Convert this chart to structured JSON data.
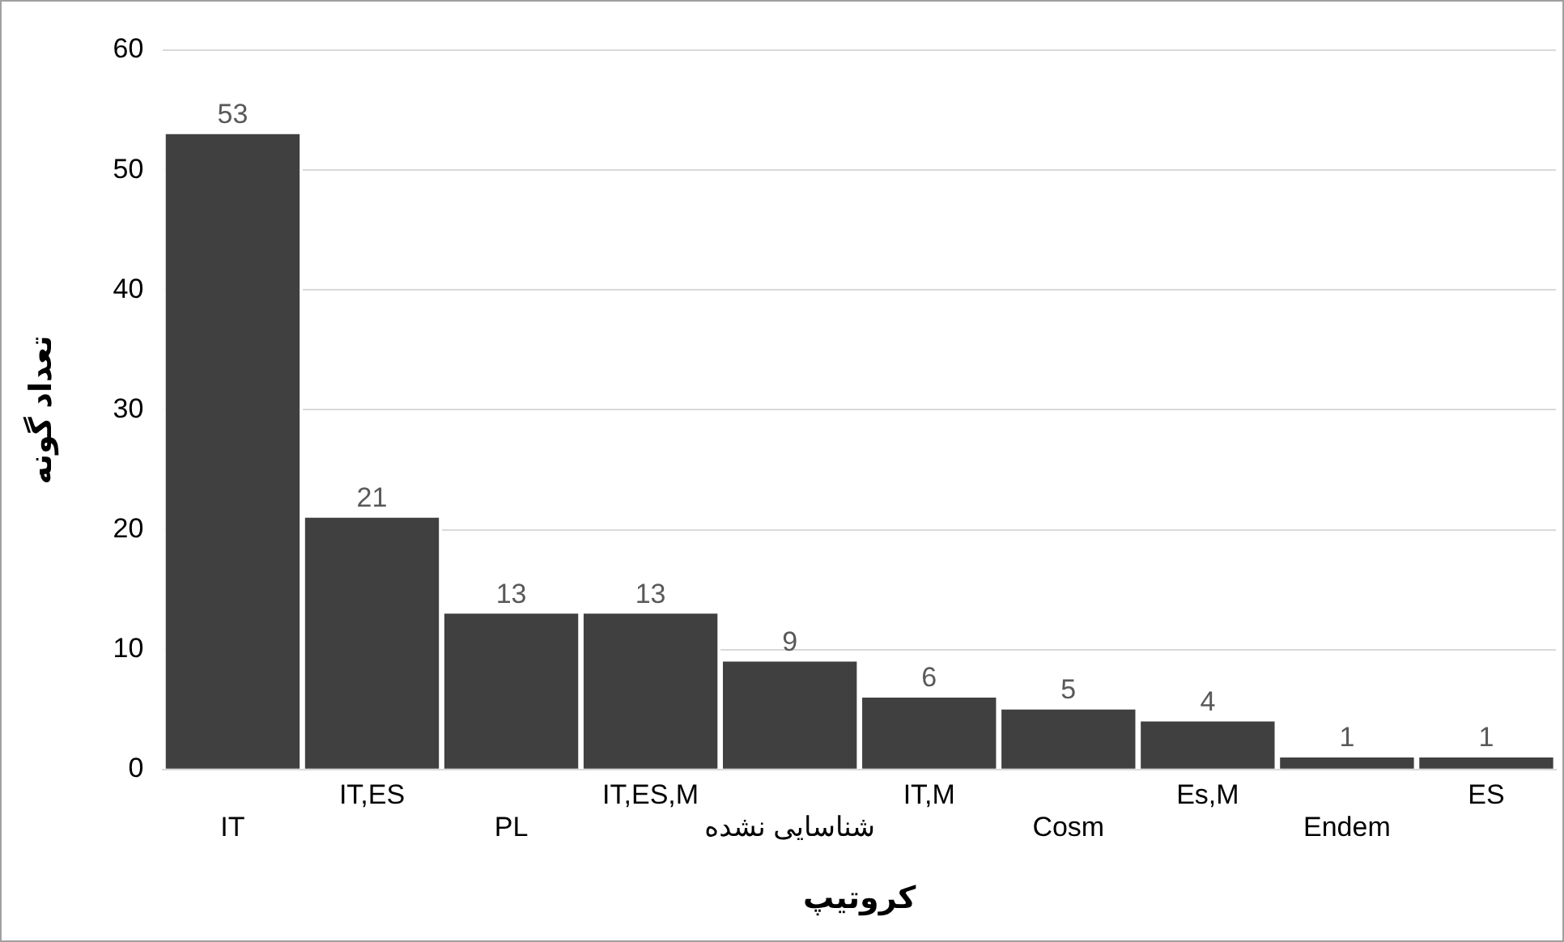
{
  "chart_data": {
    "type": "bar",
    "xlabel": "کروتیپ",
    "ylabel": "تعداد گونه",
    "categories": [
      "IT",
      "IT,ES",
      "PL",
      "IT,ES,M",
      "شناسایی نشده",
      "IT,M",
      "Cosm",
      "Es,M",
      "Endem",
      "ES"
    ],
    "values": [
      53,
      21,
      13,
      13,
      9,
      6,
      5,
      4,
      1,
      1
    ],
    "color": "#404040",
    "ylim": [
      0,
      60
    ],
    "yticks": [
      0,
      10,
      20,
      30,
      40,
      50,
      60
    ],
    "grid": "y",
    "data_labels": true
  }
}
